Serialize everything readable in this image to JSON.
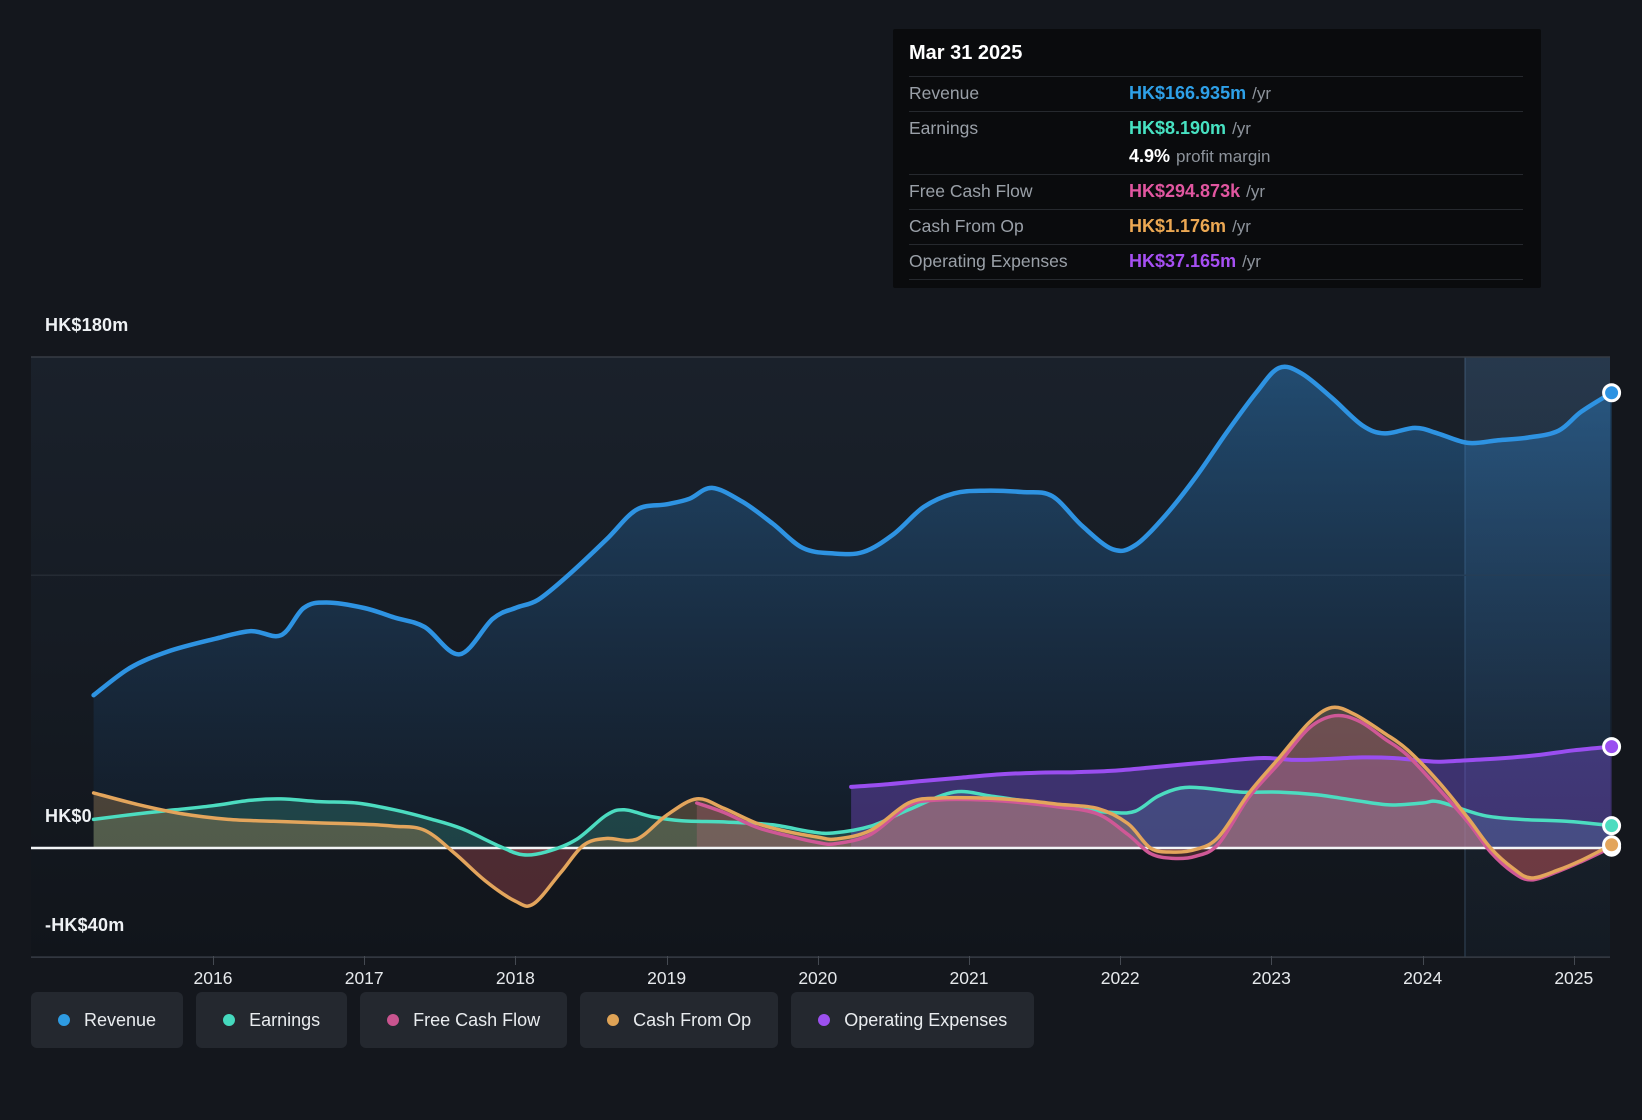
{
  "tooltip": {
    "date": "Mar 31 2025",
    "rows": [
      {
        "label": "Revenue",
        "value": "HK$166.935m",
        "unit": "/yr",
        "color": "#2ea0e8"
      },
      {
        "label": "Earnings",
        "value": "HK$8.190m",
        "unit": "/yr",
        "color": "#47e2c2"
      },
      {
        "label": "Free Cash Flow",
        "value": "HK$294.873k",
        "unit": "/yr",
        "color": "#e156a0"
      },
      {
        "label": "Cash From Op",
        "value": "HK$1.176m",
        "unit": "/yr",
        "color": "#eca853"
      },
      {
        "label": "Operating Expenses",
        "value": "HK$37.165m",
        "unit": "/yr",
        "color": "#a64ff2"
      }
    ],
    "profit_margin": {
      "value": "4.9%",
      "label": "profit margin"
    }
  },
  "legend": [
    {
      "label": "Revenue",
      "color": "#2e9be2"
    },
    {
      "label": "Earnings",
      "color": "#45d9be"
    },
    {
      "label": "Free Cash Flow",
      "color": "#c9548f"
    },
    {
      "label": "Cash From Op",
      "color": "#dfa356"
    },
    {
      "label": "Operating Expenses",
      "color": "#9c50ef"
    }
  ],
  "chart_data": {
    "type": "area",
    "x_unit": "year",
    "y_unit": "HK$ millions",
    "x_range": [
      2015.21,
      2025.25
    ],
    "x_ticks": [
      2016,
      2017,
      2018,
      2019,
      2020,
      2021,
      2022,
      2023,
      2024,
      2025
    ],
    "y_gridlines": [
      {
        "label": "HK$180m",
        "value": 180
      },
      {
        "label": "HK$0",
        "value": 0
      },
      {
        "label": "-HK$40m",
        "value": -40
      }
    ],
    "unlabeled_gridline_value": 100,
    "highlight_band_years": [
      2024.28,
      2025.3
    ],
    "grid": true,
    "legend_position": "bottom",
    "series": [
      {
        "name": "Revenue",
        "color": "#2e93e2",
        "fill": "gradient-blue",
        "stroke_width": 4.5,
        "points": [
          [
            2015.21,
            56
          ],
          [
            2015.45,
            66
          ],
          [
            2015.7,
            72
          ],
          [
            2016.0,
            76.5
          ],
          [
            2016.25,
            79.5
          ],
          [
            2016.45,
            78
          ],
          [
            2016.6,
            88
          ],
          [
            2016.75,
            90
          ],
          [
            2017.0,
            88
          ],
          [
            2017.2,
            84.5
          ],
          [
            2017.4,
            81
          ],
          [
            2017.63,
            71
          ],
          [
            2017.85,
            84
          ],
          [
            2018.0,
            88
          ],
          [
            2018.15,
            91
          ],
          [
            2018.35,
            100
          ],
          [
            2018.6,
            113
          ],
          [
            2018.8,
            124
          ],
          [
            2019.0,
            126
          ],
          [
            2019.15,
            128
          ],
          [
            2019.3,
            132
          ],
          [
            2019.5,
            127
          ],
          [
            2019.7,
            119
          ],
          [
            2019.9,
            110
          ],
          [
            2020.1,
            108
          ],
          [
            2020.3,
            108.5
          ],
          [
            2020.5,
            115
          ],
          [
            2020.7,
            125
          ],
          [
            2020.9,
            130
          ],
          [
            2021.1,
            131
          ],
          [
            2021.35,
            130.5
          ],
          [
            2021.55,
            129
          ],
          [
            2021.75,
            118
          ],
          [
            2021.95,
            109.5
          ],
          [
            2022.1,
            111
          ],
          [
            2022.3,
            122
          ],
          [
            2022.5,
            136
          ],
          [
            2022.7,
            152
          ],
          [
            2022.9,
            167
          ],
          [
            2023.05,
            176
          ],
          [
            2023.2,
            174
          ],
          [
            2023.4,
            165
          ],
          [
            2023.6,
            155
          ],
          [
            2023.75,
            152
          ],
          [
            2023.95,
            154
          ],
          [
            2024.1,
            152
          ],
          [
            2024.3,
            148.5
          ],
          [
            2024.5,
            149.5
          ],
          [
            2024.7,
            150.5
          ],
          [
            2024.9,
            153
          ],
          [
            2025.05,
            160
          ],
          [
            2025.25,
            166.9
          ]
        ]
      },
      {
        "name": "Earnings",
        "color": "#4cdcc0",
        "fill": "rgba(76,220,192,0.20)",
        "fill_negative": "rgba(201,86,92,0.30)",
        "stroke_width": 3.5,
        "points": [
          [
            2015.21,
            10.5
          ],
          [
            2015.5,
            12.5
          ],
          [
            2015.75,
            14
          ],
          [
            2016.0,
            15.5
          ],
          [
            2016.25,
            17.5
          ],
          [
            2016.45,
            18
          ],
          [
            2016.7,
            17
          ],
          [
            2016.95,
            16.5
          ],
          [
            2017.2,
            14
          ],
          [
            2017.45,
            10.5
          ],
          [
            2017.65,
            7
          ],
          [
            2017.9,
            0.5
          ],
          [
            2018.05,
            -2.5
          ],
          [
            2018.2,
            -1.5
          ],
          [
            2018.4,
            3
          ],
          [
            2018.6,
            12
          ],
          [
            2018.72,
            14
          ],
          [
            2018.9,
            11.5
          ],
          [
            2019.1,
            10
          ],
          [
            2019.4,
            9.5
          ],
          [
            2019.7,
            8.5
          ],
          [
            2019.95,
            6
          ],
          [
            2020.1,
            5.5
          ],
          [
            2020.35,
            8
          ],
          [
            2020.6,
            14
          ],
          [
            2020.9,
            20.5
          ],
          [
            2021.15,
            19
          ],
          [
            2021.4,
            17
          ],
          [
            2021.7,
            14.5
          ],
          [
            2021.95,
            13
          ],
          [
            2022.1,
            13.5
          ],
          [
            2022.25,
            19
          ],
          [
            2022.4,
            22
          ],
          [
            2022.55,
            22
          ],
          [
            2022.8,
            20.5
          ],
          [
            2023.05,
            20.5
          ],
          [
            2023.3,
            19.5
          ],
          [
            2023.55,
            17.5
          ],
          [
            2023.78,
            15.8
          ],
          [
            2024.0,
            16.5
          ],
          [
            2024.11,
            16.9
          ],
          [
            2024.4,
            12
          ],
          [
            2024.65,
            10.5
          ],
          [
            2024.95,
            9.8
          ],
          [
            2025.25,
            8.19
          ]
        ]
      },
      {
        "name": "Operating Expenses",
        "color": "#9a4ef0",
        "fill": "rgba(140,86,235,0.34)",
        "stroke_width": 4,
        "points": [
          [
            2020.22,
            22.4
          ],
          [
            2020.45,
            23.3
          ],
          [
            2020.7,
            24.6
          ],
          [
            2020.95,
            25.8
          ],
          [
            2021.2,
            27
          ],
          [
            2021.45,
            27.6
          ],
          [
            2021.7,
            27.8
          ],
          [
            2021.95,
            28.3
          ],
          [
            2022.2,
            29.5
          ],
          [
            2022.45,
            30.8
          ],
          [
            2022.7,
            32
          ],
          [
            2022.95,
            33
          ],
          [
            2023.15,
            32.3
          ],
          [
            2023.35,
            32.6
          ],
          [
            2023.6,
            33.2
          ],
          [
            2023.8,
            33
          ],
          [
            2024.0,
            32
          ],
          [
            2024.11,
            31.6
          ],
          [
            2024.3,
            32.2
          ],
          [
            2024.5,
            32.8
          ],
          [
            2024.75,
            34
          ],
          [
            2025.0,
            35.8
          ],
          [
            2025.25,
            37.17
          ]
        ]
      },
      {
        "name": "Free Cash Flow",
        "color": "#cf5896",
        "fill": "rgba(207,88,150,0.25)",
        "fill_negative": "rgba(201,86,92,0.25)",
        "stroke_width": 3.5,
        "points": [
          [
            2019.2,
            16.5
          ],
          [
            2019.38,
            13
          ],
          [
            2019.6,
            7.5
          ],
          [
            2019.8,
            4.5
          ],
          [
            2020.0,
            2
          ],
          [
            2020.12,
            1.6
          ],
          [
            2020.35,
            5
          ],
          [
            2020.6,
            15.5
          ],
          [
            2020.8,
            17.6
          ],
          [
            2021.1,
            17.6
          ],
          [
            2021.35,
            16.6
          ],
          [
            2021.6,
            15
          ],
          [
            2021.85,
            12.5
          ],
          [
            2022.05,
            5
          ],
          [
            2022.2,
            -2
          ],
          [
            2022.35,
            -3.8
          ],
          [
            2022.5,
            -3
          ],
          [
            2022.65,
            1.5
          ],
          [
            2022.85,
            18.5
          ],
          [
            2023.05,
            31
          ],
          [
            2023.25,
            44
          ],
          [
            2023.42,
            48.5
          ],
          [
            2023.58,
            46.5
          ],
          [
            2023.75,
            40
          ],
          [
            2023.9,
            34
          ],
          [
            2024.11,
            21.5
          ],
          [
            2024.3,
            9.5
          ],
          [
            2024.45,
            -1.5
          ],
          [
            2024.6,
            -9
          ],
          [
            2024.72,
            -11.7
          ],
          [
            2024.9,
            -8.5
          ],
          [
            2025.05,
            -5
          ],
          [
            2025.25,
            0.29
          ]
        ]
      },
      {
        "name": "Cash From Op",
        "color": "#e3a55c",
        "fill": "rgba(227,165,92,0.26)",
        "fill_negative": "rgba(201,86,92,0.32)",
        "stroke_width": 3.5,
        "points": [
          [
            2015.21,
            20.2
          ],
          [
            2015.5,
            16
          ],
          [
            2015.8,
            12.5
          ],
          [
            2016.1,
            10.5
          ],
          [
            2016.4,
            9.8
          ],
          [
            2016.7,
            9.2
          ],
          [
            2017.0,
            8.7
          ],
          [
            2017.2,
            8
          ],
          [
            2017.4,
            6.5
          ],
          [
            2017.6,
            -2
          ],
          [
            2017.8,
            -12
          ],
          [
            2018.0,
            -19.5
          ],
          [
            2018.12,
            -20.5
          ],
          [
            2018.3,
            -9
          ],
          [
            2018.45,
            1
          ],
          [
            2018.6,
            3.5
          ],
          [
            2018.8,
            3.2
          ],
          [
            2019.0,
            12
          ],
          [
            2019.2,
            18
          ],
          [
            2019.38,
            14.5
          ],
          [
            2019.6,
            9
          ],
          [
            2019.8,
            6
          ],
          [
            2020.0,
            4
          ],
          [
            2020.12,
            3.3
          ],
          [
            2020.35,
            6.5
          ],
          [
            2020.6,
            16.5
          ],
          [
            2020.8,
            18.3
          ],
          [
            2021.1,
            18.3
          ],
          [
            2021.35,
            17.5
          ],
          [
            2021.6,
            16
          ],
          [
            2021.85,
            14.5
          ],
          [
            2022.05,
            9
          ],
          [
            2022.2,
            0
          ],
          [
            2022.35,
            -1.5
          ],
          [
            2022.5,
            -0.5
          ],
          [
            2022.65,
            4
          ],
          [
            2022.85,
            20
          ],
          [
            2023.05,
            33
          ],
          [
            2023.25,
            46
          ],
          [
            2023.4,
            51.5
          ],
          [
            2023.55,
            49
          ],
          [
            2023.75,
            42
          ],
          [
            2023.9,
            36
          ],
          [
            2024.11,
            24
          ],
          [
            2024.3,
            11
          ],
          [
            2024.45,
            0
          ],
          [
            2024.6,
            -7.5
          ],
          [
            2024.72,
            -11
          ],
          [
            2024.9,
            -8
          ],
          [
            2025.05,
            -4.5
          ],
          [
            2025.25,
            1.18
          ]
        ]
      }
    ]
  }
}
